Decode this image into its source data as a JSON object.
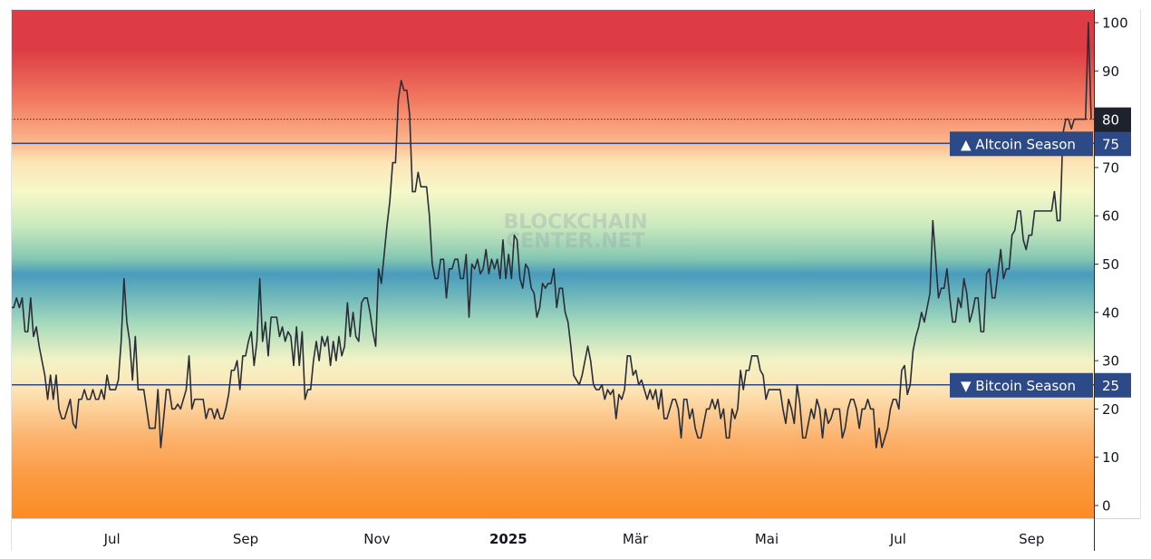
{
  "chart_data": {
    "type": "line",
    "title": "",
    "xlabel": "",
    "ylabel": "",
    "watermark": [
      "BLOCKCHAIN",
      "CENTER.NET"
    ],
    "ylim": [
      -3,
      102
    ],
    "y_ticks": [
      0,
      10,
      20,
      30,
      40,
      50,
      60,
      70,
      80,
      90,
      100
    ],
    "x_ticks": [
      {
        "label": "Jul",
        "bold": false,
        "day": 47
      },
      {
        "label": "Sep",
        "bold": false,
        "day": 109
      },
      {
        "label": "Nov",
        "bold": false,
        "day": 170
      },
      {
        "label": "2025",
        "bold": true,
        "day": 231
      },
      {
        "label": "Mär",
        "bold": false,
        "day": 290
      },
      {
        "label": "Mai",
        "bold": false,
        "day": 351
      },
      {
        "label": "Jul",
        "bold": false,
        "day": 412
      },
      {
        "label": "Sep",
        "bold": false,
        "day": 474
      }
    ],
    "x_range_days": [
      0,
      500
    ],
    "current_value": {
      "value": 80,
      "label": "80"
    },
    "thresholds": [
      {
        "name": "Altcoin Season",
        "label": "▲ Altcoin Season",
        "value": 75,
        "value_label": "75"
      },
      {
        "name": "Bitcoin Season",
        "label": "▼ Bitcoin Season",
        "value": 25,
        "value_label": "25"
      }
    ],
    "colors": {
      "line": "#2a2e39",
      "threshold": "#2b4a87",
      "badge": "#2b4a87",
      "current_badge": "#1e222d",
      "grad_top": "#dd3c44",
      "grad_mid": "#4a9bbc",
      "grad_bottom": "#fb8c24"
    },
    "series": [
      {
        "values": [
          41,
          41,
          43,
          41,
          43,
          36,
          36,
          43,
          35,
          37,
          33,
          30,
          27,
          22,
          27,
          22,
          27,
          20,
          18,
          18,
          20,
          22,
          17,
          16,
          22,
          22,
          24,
          22,
          22,
          24,
          22,
          22,
          24,
          22,
          27,
          24,
          24,
          24,
          26,
          34,
          47,
          38,
          34,
          26,
          35,
          24,
          24,
          24,
          20,
          16,
          16,
          16,
          24,
          12,
          18,
          24,
          24,
          20,
          20,
          21,
          20,
          22,
          24,
          31,
          20,
          22,
          22,
          22,
          22,
          18,
          20,
          20,
          18,
          20,
          18,
          18,
          20,
          23,
          28,
          28,
          30,
          24,
          31,
          31,
          34,
          36,
          29,
          34,
          47,
          34,
          38,
          31,
          39,
          39,
          39,
          35,
          37,
          34,
          36,
          35,
          29,
          37,
          29,
          36,
          22,
          24,
          24,
          30,
          34,
          30,
          35,
          33,
          35,
          29,
          34,
          30,
          35,
          31,
          33,
          42,
          35,
          40,
          35,
          34,
          42,
          43,
          43,
          40,
          36,
          33,
          49,
          46,
          52,
          58,
          63,
          71,
          71,
          84,
          88,
          86,
          86,
          81,
          65,
          65,
          69,
          66,
          66,
          66,
          60,
          50,
          47,
          47,
          51,
          51,
          43,
          49,
          49,
          51,
          51,
          47,
          47,
          52,
          39,
          50,
          49,
          51,
          48,
          49,
          53,
          48,
          51,
          49,
          51,
          47,
          55,
          47,
          52,
          47,
          56,
          55,
          47,
          45,
          50,
          49,
          45,
          44,
          39,
          41,
          46,
          45,
          46,
          46,
          49,
          41,
          45,
          45,
          40,
          38,
          33,
          27,
          26,
          25,
          27,
          30,
          33,
          30,
          25,
          24,
          24,
          25,
          22,
          24,
          23,
          24,
          18,
          23,
          22,
          24,
          31,
          31,
          27,
          28,
          25,
          26,
          24,
          22,
          24,
          22,
          24,
          20,
          24,
          18,
          18,
          20,
          22,
          22,
          20,
          14,
          22,
          22,
          18,
          20,
          16,
          14,
          14,
          17,
          20,
          20,
          22,
          20,
          22,
          18,
          20,
          14,
          14,
          20,
          18,
          20,
          28,
          24,
          28,
          28,
          31,
          31,
          31,
          28,
          27,
          22,
          24,
          24,
          24,
          24,
          24,
          20,
          17,
          22,
          20,
          17,
          25,
          21,
          14,
          14,
          17,
          20,
          18,
          22,
          20,
          14,
          20,
          17,
          18,
          20,
          20,
          20,
          14,
          16,
          20,
          22,
          22,
          20,
          16,
          20,
          20,
          22,
          20,
          20,
          12,
          16,
          12,
          14,
          16,
          20,
          22,
          22,
          20,
          28,
          29,
          23,
          25,
          32,
          35,
          37,
          40,
          38,
          41,
          44,
          59,
          51,
          43,
          45,
          45,
          49,
          43,
          38,
          38,
          43,
          41,
          47,
          44,
          38,
          40,
          43,
          43,
          36,
          36,
          48,
          49,
          43,
          43,
          48,
          53,
          47,
          49,
          49,
          56,
          57,
          61,
          61,
          55,
          53,
          56,
          56,
          61,
          61,
          61,
          61,
          61,
          61,
          61,
          65,
          59,
          59,
          77,
          80,
          80,
          78,
          80,
          80,
          80,
          80,
          80,
          100,
          80
        ]
      }
    ]
  }
}
